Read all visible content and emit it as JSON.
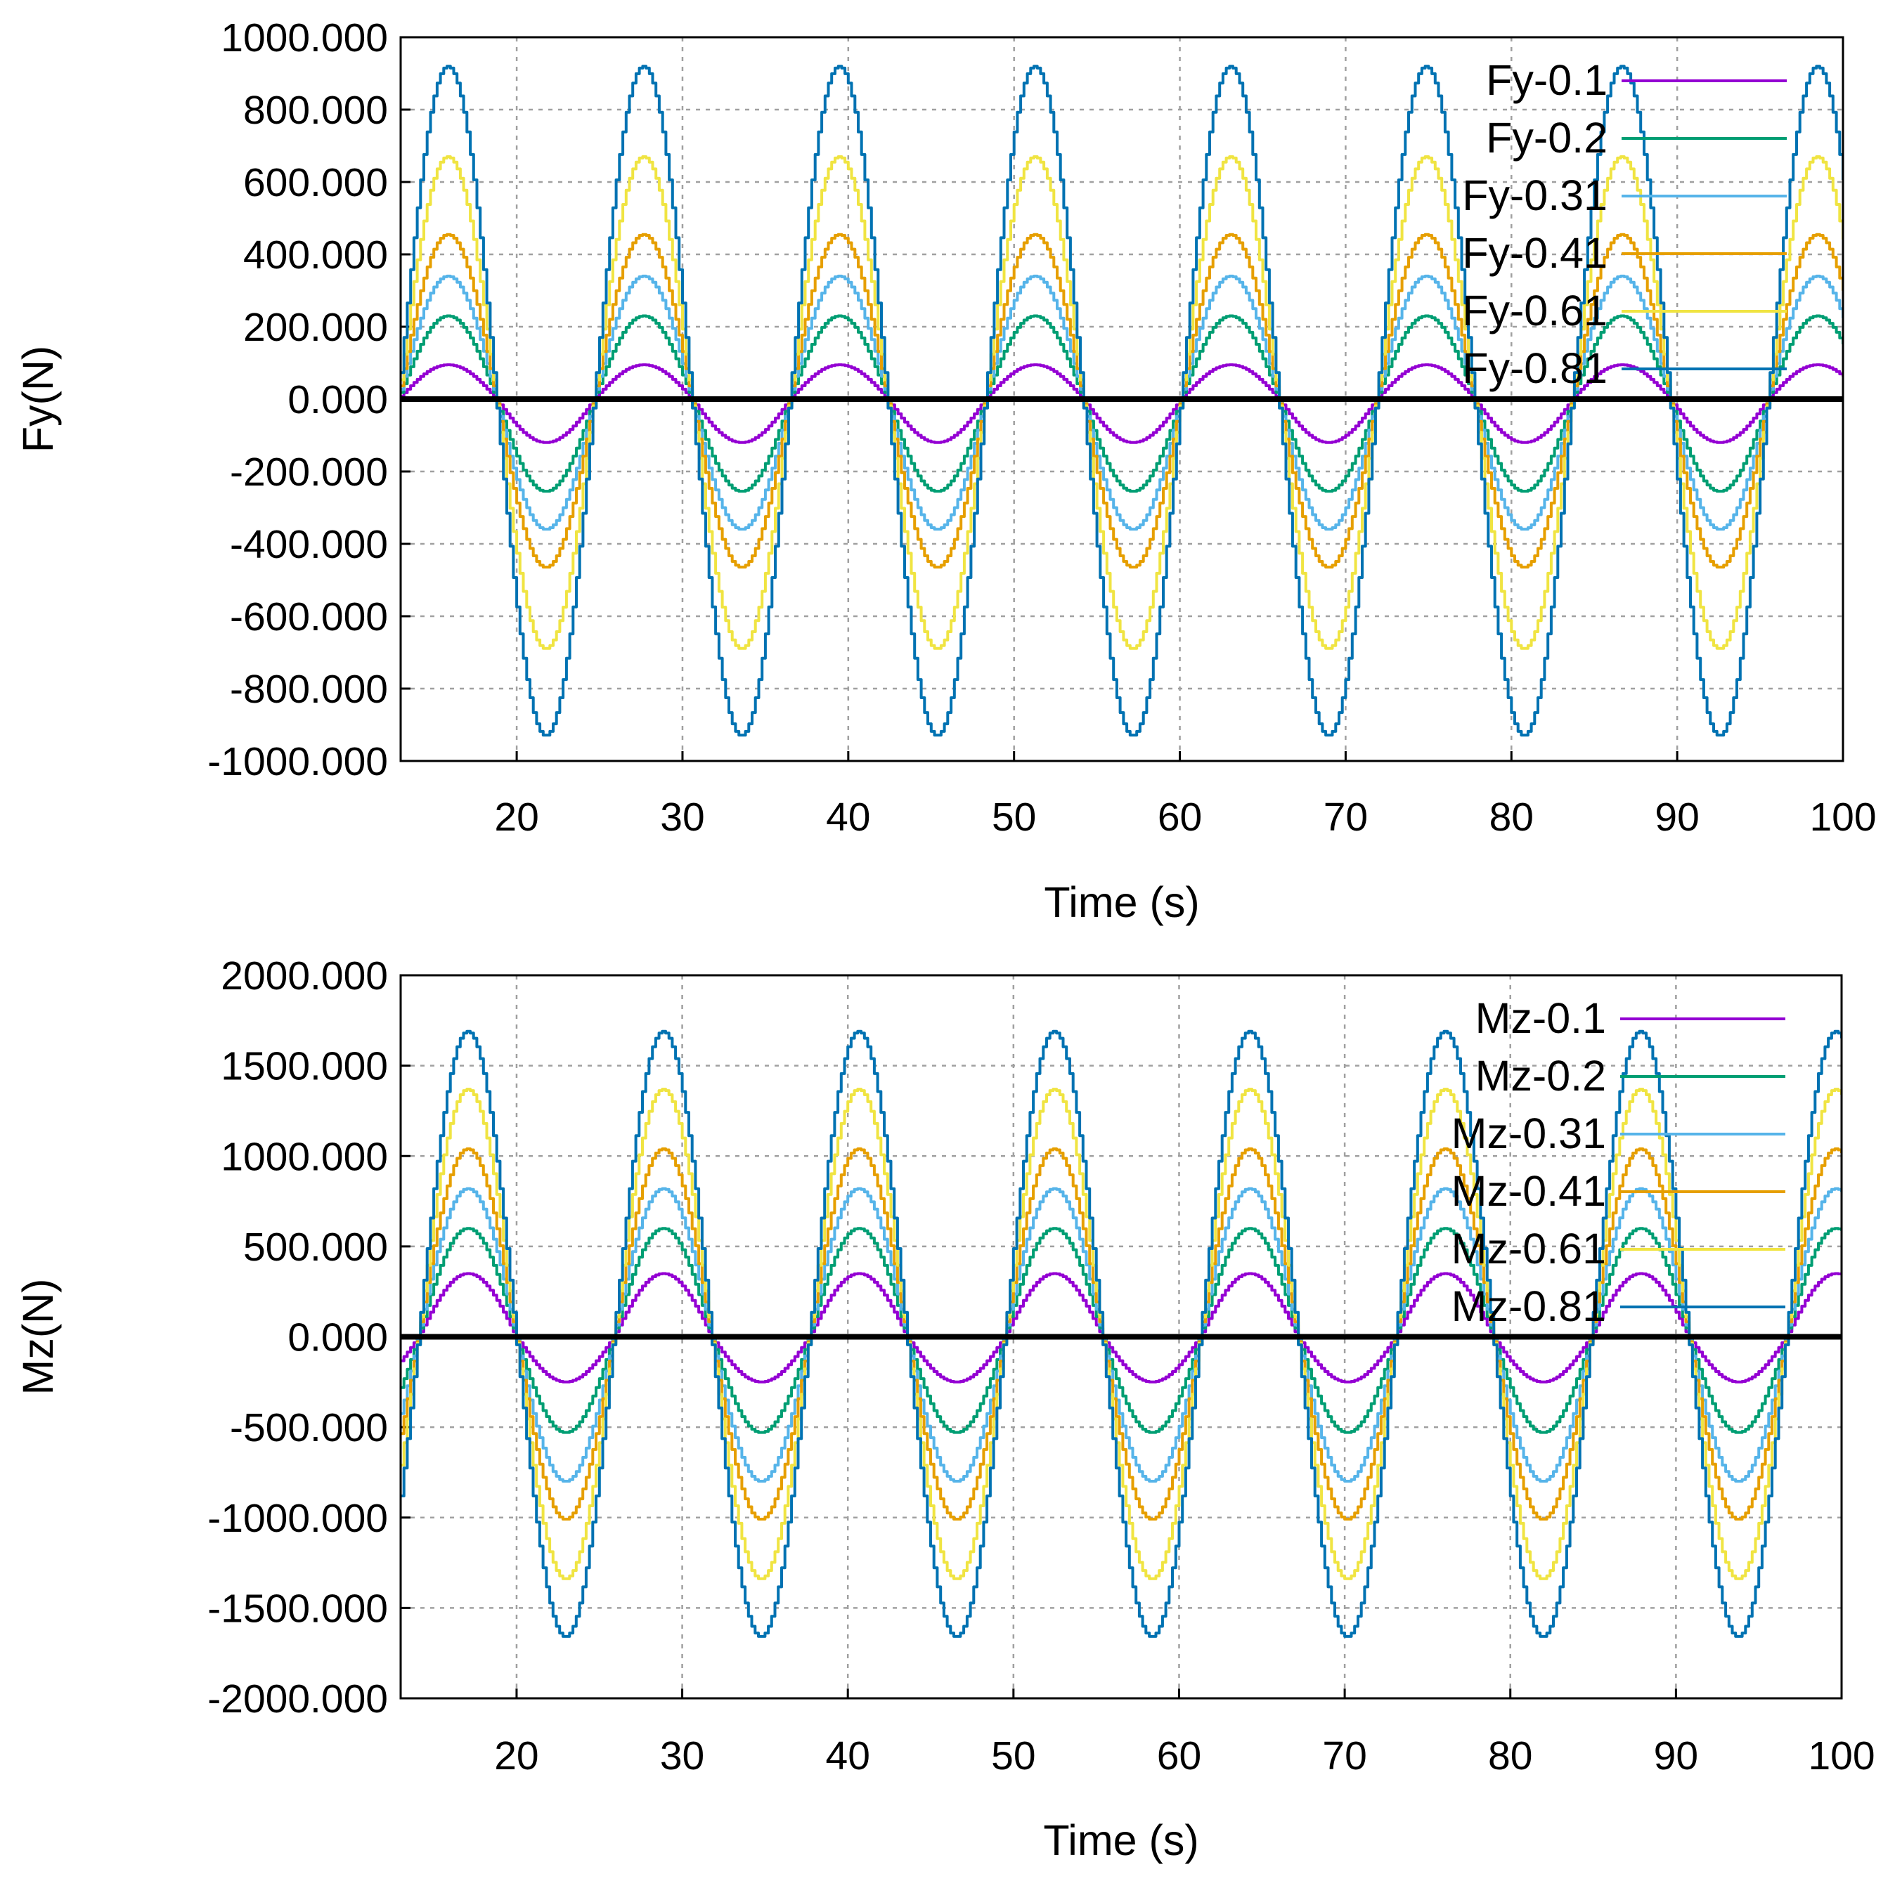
{
  "chart_data": [
    {
      "type": "line",
      "title": "",
      "xlabel": "Time (s)",
      "ylabel": "Fy(N)",
      "xlim": [
        13,
        100
      ],
      "ylim": [
        -1000,
        1000
      ],
      "grid": true,
      "legend": "top-right",
      "xticks": [
        20,
        30,
        40,
        50,
        60,
        70,
        80,
        90,
        100
      ],
      "yticks": [
        -1000,
        -800,
        -600,
        -400,
        -200,
        0,
        200,
        400,
        600,
        800,
        1000
      ],
      "ytick_labels": [
        "-1000.000",
        "-800.000",
        "-600.000",
        "-400.000",
        "-200.000",
        "0.000",
        "200.000",
        "400.000",
        "600.000",
        "800.000",
        "1000.000"
      ],
      "xtick_labels": [
        "20",
        "30",
        "40",
        "50",
        "60",
        "70",
        "80",
        "90",
        "100"
      ],
      "zero_line": true,
      "wave": {
        "period_s": 11.8,
        "first_peak_s": 15.8,
        "samples_per_s": 5
      },
      "series": [
        {
          "name": "Fy-0.1",
          "color": "#9400d3",
          "peak": 95,
          "trough": -120
        },
        {
          "name": "Fy-0.2",
          "color": "#009e73",
          "peak": 230,
          "trough": -255
        },
        {
          "name": "Fy-0.31",
          "color": "#56b4e9",
          "peak": 340,
          "trough": -360
        },
        {
          "name": "Fy-0.41",
          "color": "#e69f00",
          "peak": 455,
          "trough": -465
        },
        {
          "name": "Fy-0.61",
          "color": "#f0e442",
          "peak": 670,
          "trough": -690
        },
        {
          "name": "Fy-0.81",
          "color": "#0072b2",
          "peak": 920,
          "trough": -930
        }
      ]
    },
    {
      "type": "line",
      "title": "",
      "xlabel": "Time (s)",
      "ylabel": "Mz(N)",
      "xlim": [
        13,
        100
      ],
      "ylim": [
        -2000,
        2000
      ],
      "grid": true,
      "legend": "top-right",
      "xticks": [
        20,
        30,
        40,
        50,
        60,
        70,
        80,
        90,
        100
      ],
      "yticks": [
        -2000,
        -1500,
        -1000,
        -500,
        0,
        500,
        1000,
        1500,
        2000
      ],
      "ytick_labels": [
        "-2000.000",
        "-1500.000",
        "-1000.000",
        "-500.000",
        "0.000",
        "500.000",
        "1000.000",
        "1500.000",
        "2000.000"
      ],
      "xtick_labels": [
        "20",
        "30",
        "40",
        "50",
        "60",
        "70",
        "80",
        "90",
        "100"
      ],
      "zero_line": true,
      "wave": {
        "period_s": 11.8,
        "first_peak_s": 17.0,
        "samples_per_s": 5
      },
      "series": [
        {
          "name": "Mz-0.1",
          "color": "#9400d3",
          "peak": 350,
          "trough": -250
        },
        {
          "name": "Mz-0.2",
          "color": "#009e73",
          "peak": 600,
          "trough": -530
        },
        {
          "name": "Mz-0.31",
          "color": "#56b4e9",
          "peak": 820,
          "trough": -800
        },
        {
          "name": "Mz-0.41",
          "color": "#e69f00",
          "peak": 1040,
          "trough": -1010
        },
        {
          "name": "Mz-0.61",
          "color": "#f0e442",
          "peak": 1370,
          "trough": -1340
        },
        {
          "name": "Mz-0.81",
          "color": "#0072b2",
          "peak": 1690,
          "trough": -1660
        }
      ]
    }
  ]
}
